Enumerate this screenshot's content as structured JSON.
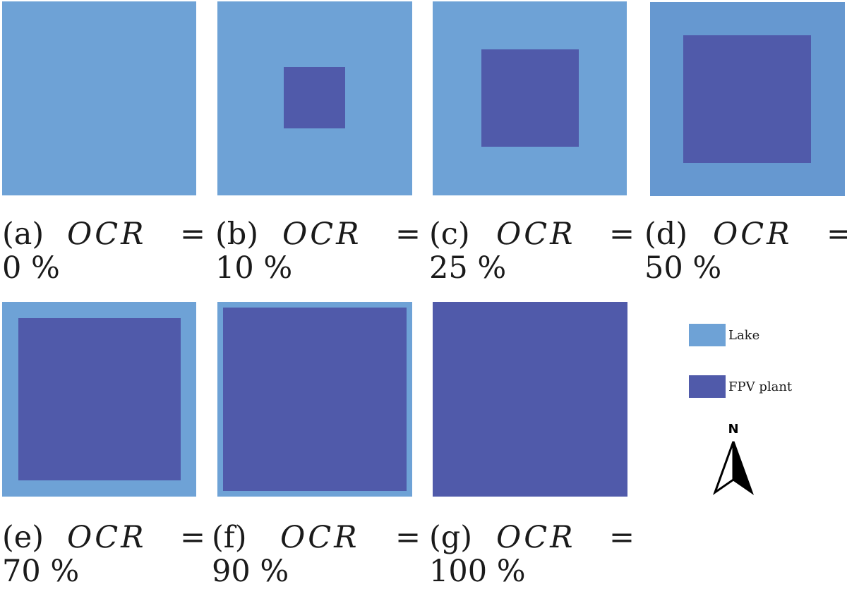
{
  "colors": {
    "lake": "#6ea2d6",
    "plant": "#505aaa",
    "text": "#1a1a1a"
  },
  "panels": [
    {
      "label": "(a)",
      "variable": "OCR",
      "equals": "=",
      "value": "0 %"
    },
    {
      "label": "(b)",
      "variable": "OCR",
      "equals": "=",
      "value": "10 %"
    },
    {
      "label": "(c)",
      "variable": "OCR",
      "equals": "=",
      "value": "25 %"
    },
    {
      "label": "(d)",
      "variable": "OCR",
      "equals": "=",
      "value": "50 %"
    },
    {
      "label": "(e)",
      "variable": "OCR",
      "equals": "=",
      "value": "70 %"
    },
    {
      "label": "(f)",
      "variable": "OCR",
      "equals": "=",
      "value": "90 %"
    },
    {
      "label": "(g)",
      "variable": "OCR",
      "equals": "=",
      "value": "100 %"
    }
  ],
  "legend": {
    "lake_label": "Lake",
    "plant_label": "FPV plant"
  },
  "north_arrow": {
    "label": "N"
  }
}
